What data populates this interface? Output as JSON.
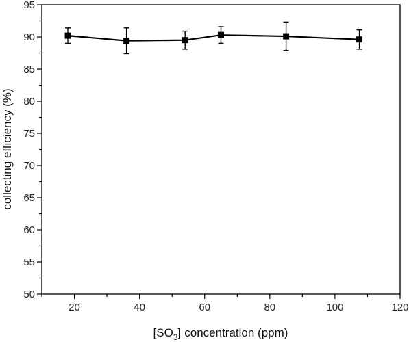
{
  "chart_data": {
    "type": "line",
    "title": "",
    "xlabel": "concentration (ppm)",
    "xlabel_prefix": "[SO",
    "xlabel_sub": "3",
    "xlabel_bracket": "]",
    "ylabel": "collecting efficiency (%)",
    "xlim": [
      10,
      120
    ],
    "ylim": [
      50,
      95
    ],
    "x_ticks": [
      20,
      40,
      60,
      80,
      100,
      120
    ],
    "y_ticks": [
      50,
      55,
      60,
      65,
      70,
      75,
      80,
      85,
      90,
      95
    ],
    "grid": false,
    "series": [
      {
        "x": [
          18,
          36,
          54,
          65,
          85,
          107.5
        ],
        "y": [
          90.2,
          89.4,
          89.5,
          90.3,
          90.1,
          89.6
        ],
        "error": [
          1.2,
          2.0,
          1.4,
          1.3,
          2.2,
          1.5
        ]
      }
    ]
  }
}
